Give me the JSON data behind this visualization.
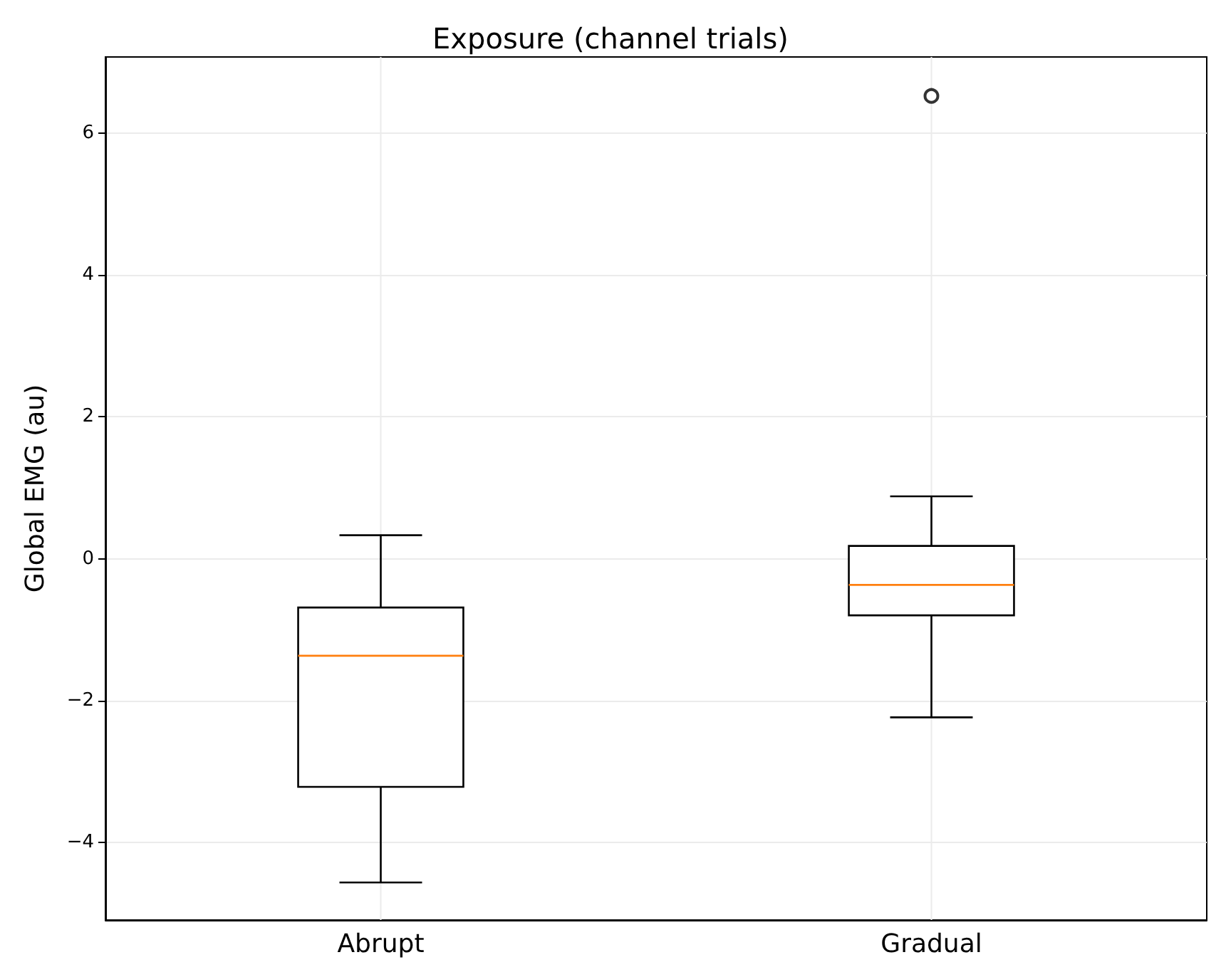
{
  "chart_data": {
    "type": "box",
    "title": "Exposure (channel trials)",
    "ylabel": "Global EMG (au)",
    "categories": [
      "Abrupt",
      "Gradual"
    ],
    "boxes": [
      {
        "low": -4.57,
        "q1": -3.22,
        "median": -1.37,
        "q3": -0.69,
        "high": 0.33
      },
      {
        "low": -2.24,
        "q1": -0.8,
        "median": -0.37,
        "q3": 0.18,
        "high": 0.88,
        "outliers": [
          6.53
        ]
      }
    ],
    "color": "#000000",
    "ylim": [
      -5.1,
      7.08
    ],
    "yticks": [
      {
        "value": -4,
        "label": "−4"
      },
      {
        "value": -2,
        "label": "−2"
      },
      0,
      2,
      4,
      6
    ],
    "grid": true
  }
}
